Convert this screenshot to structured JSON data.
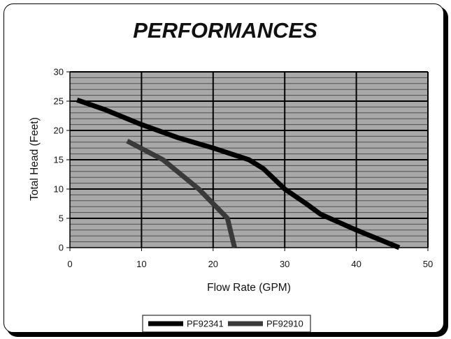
{
  "chart_data": {
    "type": "line",
    "title": "PERFORMANCES",
    "xlabel": "Flow Rate (GPM)",
    "ylabel": "Total Head (Feet)",
    "xlim": [
      0,
      50
    ],
    "ylim": [
      0,
      30
    ],
    "x_ticks": [
      "0",
      "10",
      "20",
      "30",
      "40",
      "50"
    ],
    "y_ticks": [
      "0",
      "5",
      "10",
      "15",
      "20",
      "25",
      "30"
    ],
    "grid": "on",
    "legend_position": "bottom",
    "plot_background": "#a8a8a8",
    "series": [
      {
        "name": "PF92341",
        "color": "#000000",
        "points": [
          [
            1,
            25.2
          ],
          [
            5,
            23.5
          ],
          [
            10,
            21
          ],
          [
            15,
            18.8
          ],
          [
            20,
            17
          ],
          [
            25,
            15
          ],
          [
            27,
            13.5
          ],
          [
            30,
            10
          ],
          [
            33,
            7.5
          ],
          [
            35,
            5.7
          ],
          [
            40,
            3
          ],
          [
            44,
            1
          ],
          [
            46,
            0
          ]
        ]
      },
      {
        "name": "PF92910",
        "color": "#3a3a3a",
        "points": [
          [
            8,
            18.2
          ],
          [
            13,
            15
          ],
          [
            18,
            10
          ],
          [
            20,
            7.5
          ],
          [
            22,
            5
          ],
          [
            23,
            0
          ]
        ]
      }
    ]
  }
}
